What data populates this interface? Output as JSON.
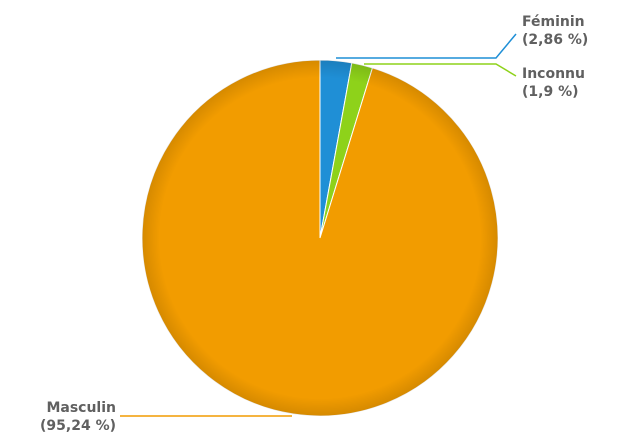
{
  "chart_data": {
    "type": "pie",
    "slices": [
      {
        "name": "Féminin",
        "value": 2.86,
        "value_label": "(2,86 %)",
        "color": "#1f8fd6"
      },
      {
        "name": "Inconnu",
        "value": 1.9,
        "value_label": "(1,9 %)",
        "color": "#8ed21a"
      },
      {
        "name": "Masculin",
        "value": 95.24,
        "value_label": "(95,24 %)",
        "color": "#f29c00"
      }
    ],
    "label_color": "#606060",
    "slice_border_color": "#c98700"
  }
}
